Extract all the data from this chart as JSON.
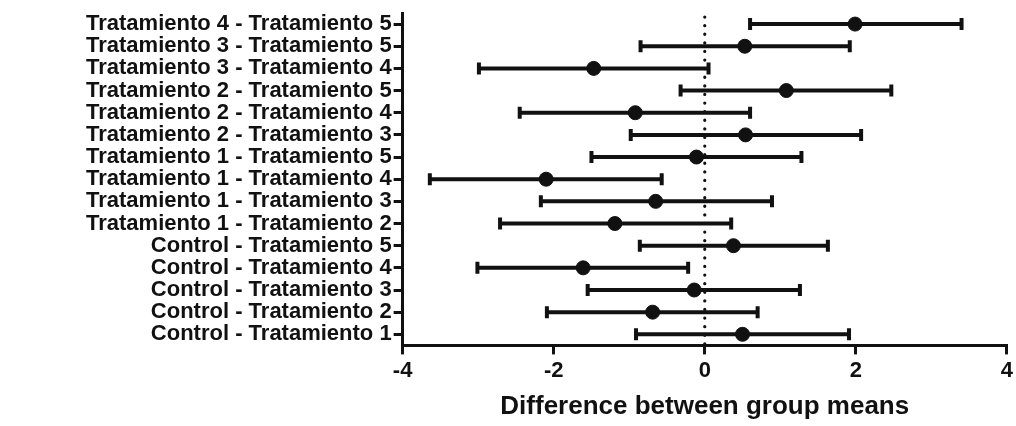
{
  "chart_data": {
    "type": "scatter",
    "orientation": "horizontal",
    "xlabel": "Difference between group means",
    "categories": [
      "Tratamiento 4 - Tratamiento 5",
      "Tratamiento 3 - Tratamiento 5",
      "Tratamiento 3 - Tratamiento 4",
      "Tratamiento 2 - Tratamiento 5",
      "Tratamiento 2 - Tratamiento 4",
      "Tratamiento 2 - Tratamiento 3",
      "Tratamiento 1 - Tratamiento 5",
      "Tratamiento 1 - Tratamiento 4",
      "Tratamiento 1 - Tratamiento 3",
      "Tratamiento 1 - Tratamiento 2",
      "Control - Tratamiento 5",
      "Control - Tratamiento 4",
      "Control - Tratamiento 3",
      "Control - Tratamiento 2",
      "Control - Tratamiento 1"
    ],
    "values": [
      1.99,
      0.53,
      -1.47,
      1.08,
      -0.92,
      0.54,
      -0.11,
      -2.1,
      -0.65,
      -1.19,
      0.38,
      -1.61,
      -0.14,
      -0.69,
      0.5
    ],
    "errors": [
      [
        0.6,
        3.4
      ],
      [
        -0.85,
        1.92
      ],
      [
        -2.99,
        0.05
      ],
      [
        -0.32,
        2.47
      ],
      [
        -2.45,
        0.6
      ],
      [
        -0.98,
        2.07
      ],
      [
        -1.5,
        1.28
      ],
      [
        -3.64,
        -0.57
      ],
      [
        -2.17,
        0.89
      ],
      [
        -2.71,
        0.35
      ],
      [
        -0.86,
        1.63
      ],
      [
        -3.01,
        -0.22
      ],
      [
        -1.55,
        1.26
      ],
      [
        -2.09,
        0.7
      ],
      [
        -0.91,
        1.91
      ]
    ],
    "color": "#111111",
    "marker": "circle",
    "xlim": [
      -4,
      4
    ],
    "xticks": [
      -4,
      -2,
      0,
      2,
      4
    ],
    "ref_lines": [
      {
        "axis": "x",
        "value": 0,
        "line_style": "dotted",
        "color": "#111111"
      }
    ]
  }
}
